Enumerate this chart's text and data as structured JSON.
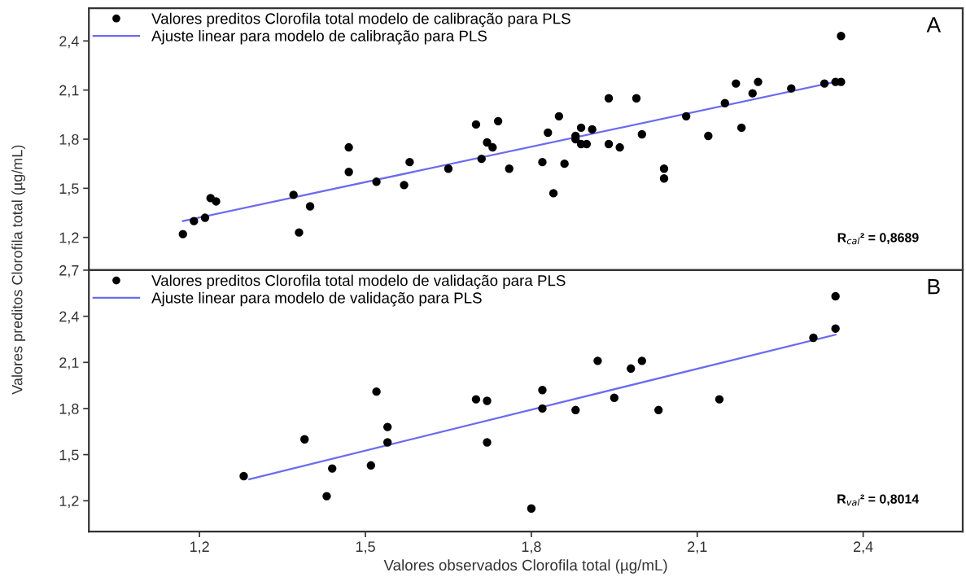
{
  "chart_data": [
    {
      "type": "scatter",
      "ylabel": "Valores preditos Clorofila total (µg/mL)",
      "xlim": [
        1.0,
        2.58
      ],
      "ylim": [
        1.0,
        2.6
      ],
      "yticks": [
        {
          "value": 1.2,
          "label": "1,2"
        },
        {
          "value": 1.5,
          "label": "1,5"
        },
        {
          "value": 1.8,
          "label": "1,8"
        },
        {
          "value": 2.1,
          "label": "2,1"
        },
        {
          "value": 2.4,
          "label": "2,4"
        }
      ],
      "tick_labels": "y",
      "grid": false,
      "legend": "top left",
      "marker": "circle",
      "annotations": [
        {
          "text": "A"
        },
        {
          "text": "R$_{cal}$² = 0,8689"
        }
      ],
      "series": [
        {
          "name": "Valores preditos Clorofila total modelo de calibração para PLS",
          "color": "#000000",
          "x": [
            1.17,
            1.19,
            1.21,
            1.22,
            1.23,
            1.37,
            1.38,
            1.4,
            1.47,
            1.47,
            1.52,
            1.57,
            1.58,
            1.65,
            1.7,
            1.71,
            1.72,
            1.73,
            1.74,
            1.76,
            1.82,
            1.83,
            1.84,
            1.85,
            1.86,
            1.88,
            1.88,
            1.89,
            1.89,
            1.9,
            1.91,
            1.94,
            1.94,
            1.96,
            1.99,
            2.0,
            2.04,
            2.04,
            2.08,
            2.12,
            2.15,
            2.17,
            2.18,
            2.2,
            2.21,
            2.27,
            2.33,
            2.35,
            2.36,
            2.36
          ],
          "values": [
            1.22,
            1.3,
            1.32,
            1.44,
            1.42,
            1.46,
            1.23,
            1.39,
            1.75,
            1.6,
            1.54,
            1.52,
            1.66,
            1.62,
            1.89,
            1.68,
            1.78,
            1.75,
            1.91,
            1.62,
            1.66,
            1.84,
            1.47,
            1.94,
            1.65,
            1.82,
            1.8,
            1.87,
            1.77,
            1.77,
            1.86,
            1.77,
            2.05,
            1.75,
            2.05,
            1.83,
            1.62,
            1.56,
            1.94,
            1.82,
            2.02,
            2.14,
            1.87,
            2.08,
            2.15,
            2.11,
            2.14,
            2.15,
            2.15,
            2.43
          ]
        },
        {
          "name": "Ajuste linear para modelo de calibração para PLS",
          "type": "line",
          "color": "#6b6bf0",
          "marker": "none",
          "x": [
            1.17,
            2.35
          ],
          "values": [
            1.3,
            2.15
          ]
        }
      ]
    },
    {
      "type": "scatter",
      "xlabel": "Valores observados Clorofila total (µg/mL)",
      "xlim": [
        1.0,
        2.58
      ],
      "ylim": [
        1.0,
        2.7
      ],
      "xticks": [
        {
          "value": 1.2,
          "label": "1,2"
        },
        {
          "value": 1.5,
          "label": "1,5"
        },
        {
          "value": 1.8,
          "label": "1,8"
        },
        {
          "value": 2.1,
          "label": "2,1"
        },
        {
          "value": 2.4,
          "label": "2,4"
        }
      ],
      "yticks": [
        {
          "value": 1.2,
          "label": "1,2"
        },
        {
          "value": 1.5,
          "label": "1,5"
        },
        {
          "value": 1.8,
          "label": "1,8"
        },
        {
          "value": 2.1,
          "label": "2,1"
        },
        {
          "value": 2.4,
          "label": "2,4"
        },
        {
          "value": 2.7,
          "label": "2,7"
        }
      ],
      "grid": false,
      "legend": "top left",
      "marker": "circle",
      "annotations": [
        {
          "text": "B"
        },
        {
          "text": "R$_{val}$² = 0,8014"
        }
      ],
      "series": [
        {
          "name": "Valores preditos Clorofila total modelo de validação para PLS",
          "color": "#000000",
          "x": [
            1.28,
            1.39,
            1.43,
            1.44,
            1.51,
            1.52,
            1.54,
            1.54,
            1.7,
            1.72,
            1.72,
            1.82,
            1.82,
            1.8,
            1.88,
            1.92,
            1.95,
            1.98,
            2.0,
            2.03,
            2.14,
            2.31,
            2.35,
            2.35
          ],
          "values": [
            1.36,
            1.6,
            1.23,
            1.41,
            1.43,
            1.91,
            1.68,
            1.58,
            1.86,
            1.85,
            1.58,
            1.92,
            1.8,
            1.15,
            1.79,
            2.11,
            1.87,
            2.06,
            2.11,
            1.79,
            1.86,
            2.26,
            2.32,
            2.53
          ]
        },
        {
          "name": "Ajuste linear para modelo de validação para PLS",
          "type": "line",
          "color": "#6b6bf0",
          "marker": "none",
          "x": [
            1.29,
            2.35
          ],
          "values": [
            1.34,
            2.28
          ]
        }
      ]
    }
  ]
}
